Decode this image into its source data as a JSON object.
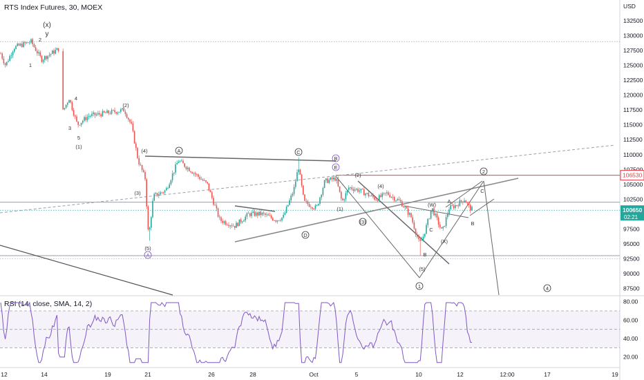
{
  "chart_data": {
    "type": "candlestick",
    "title": "RTS Index Futures, 30, MOEX",
    "currency_label": "USD",
    "y_ticks": [
      132500,
      130000,
      127500,
      125000,
      122500,
      120000,
      117500,
      115000,
      112500,
      110000,
      107500,
      105000,
      102500,
      97500,
      95000,
      92500,
      90000,
      87500
    ],
    "ylim": [
      86500,
      136000
    ],
    "x_ticks": [
      "12",
      "14",
      "19",
      "21",
      "26",
      "28",
      "Oct",
      "5",
      "10",
      "12",
      "12:00",
      "17",
      "19"
    ],
    "last_price": {
      "value": 100650,
      "label": "100650",
      "countdown": "02:21"
    },
    "level_line": {
      "value": 106530,
      "label": "106530"
    },
    "wave_labels": [
      "(x)",
      "y",
      "2",
      "1",
      "4",
      "3",
      "5",
      "(1)",
      "(2)",
      "(4)",
      "(3)",
      "(5)",
      "A",
      "C",
      "B",
      "E",
      "D",
      "(2)",
      "(4)",
      "(1)",
      "(3)",
      "(5)",
      "B",
      "(W)",
      "C",
      "(X)",
      "A",
      "C",
      "B",
      "2",
      "1",
      "4"
    ],
    "rsi": {
      "title": "RSI (14, close, SMA, 14, 2)",
      "ylim": [
        10,
        85
      ],
      "y_ticks": [
        80,
        60,
        40,
        20
      ],
      "band": [
        30,
        70
      ],
      "mid": 50
    },
    "colors": {
      "up": "#26a69a",
      "down": "#ef5350",
      "rsi": "#7e57c2",
      "price_tag": "#26a69a",
      "level_tag": "#f23645"
    }
  }
}
